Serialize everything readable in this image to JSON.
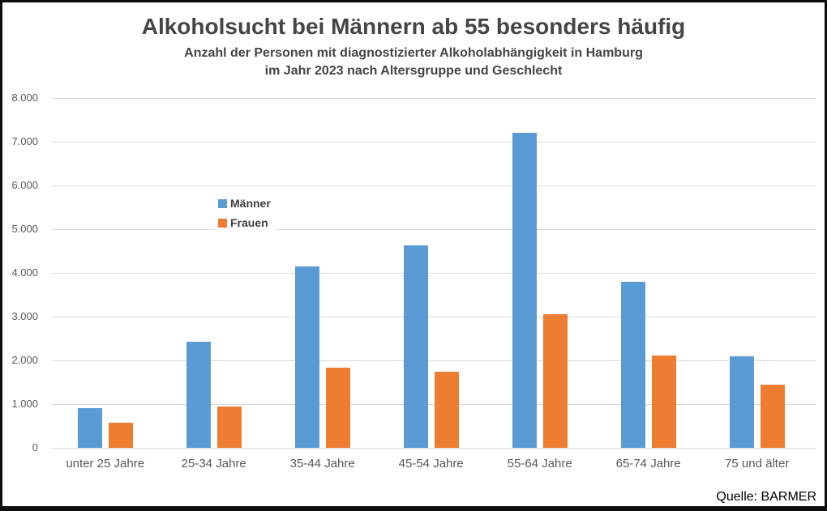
{
  "title": "Alkoholsucht bei Männern ab 55 besonders häufig",
  "subtitle_line1": "Anzahl der Personen mit diagnostizierter Alkoholabhängigkeit in Hamburg",
  "subtitle_line2": "im Jahr 2023 nach Altersgruppe und Geschlecht",
  "source": "Quelle: BARMER",
  "chart_data": {
    "type": "bar",
    "categories": [
      "unter 25 Jahre",
      "25-34 Jahre",
      "35-44 Jahre",
      "45-54 Jahre",
      "55-64 Jahre",
      "65-74 Jahre",
      "75 und älter"
    ],
    "series": [
      {
        "name": "Männer",
        "color": "#5B9BD5",
        "values": [
          910,
          2430,
          4140,
          4630,
          7200,
          3800,
          2090
        ]
      },
      {
        "name": "Frauen",
        "color": "#ED7D31",
        "values": [
          570,
          950,
          1840,
          1750,
          3060,
          2120,
          1440
        ]
      }
    ],
    "title": "Alkoholsucht bei Männern ab 55 besonders häufig",
    "xlabel": "",
    "ylabel": "",
    "ylim": [
      0,
      8000
    ],
    "ytick_interval": 1000,
    "ytick_labels": [
      "0",
      "1.000",
      "2.000",
      "3.000",
      "4.000",
      "5.000",
      "6.000",
      "7.000",
      "8.000"
    ],
    "grid": true,
    "legend_position": "inside-left-middle",
    "gridline_color": "#d9d9d9"
  }
}
